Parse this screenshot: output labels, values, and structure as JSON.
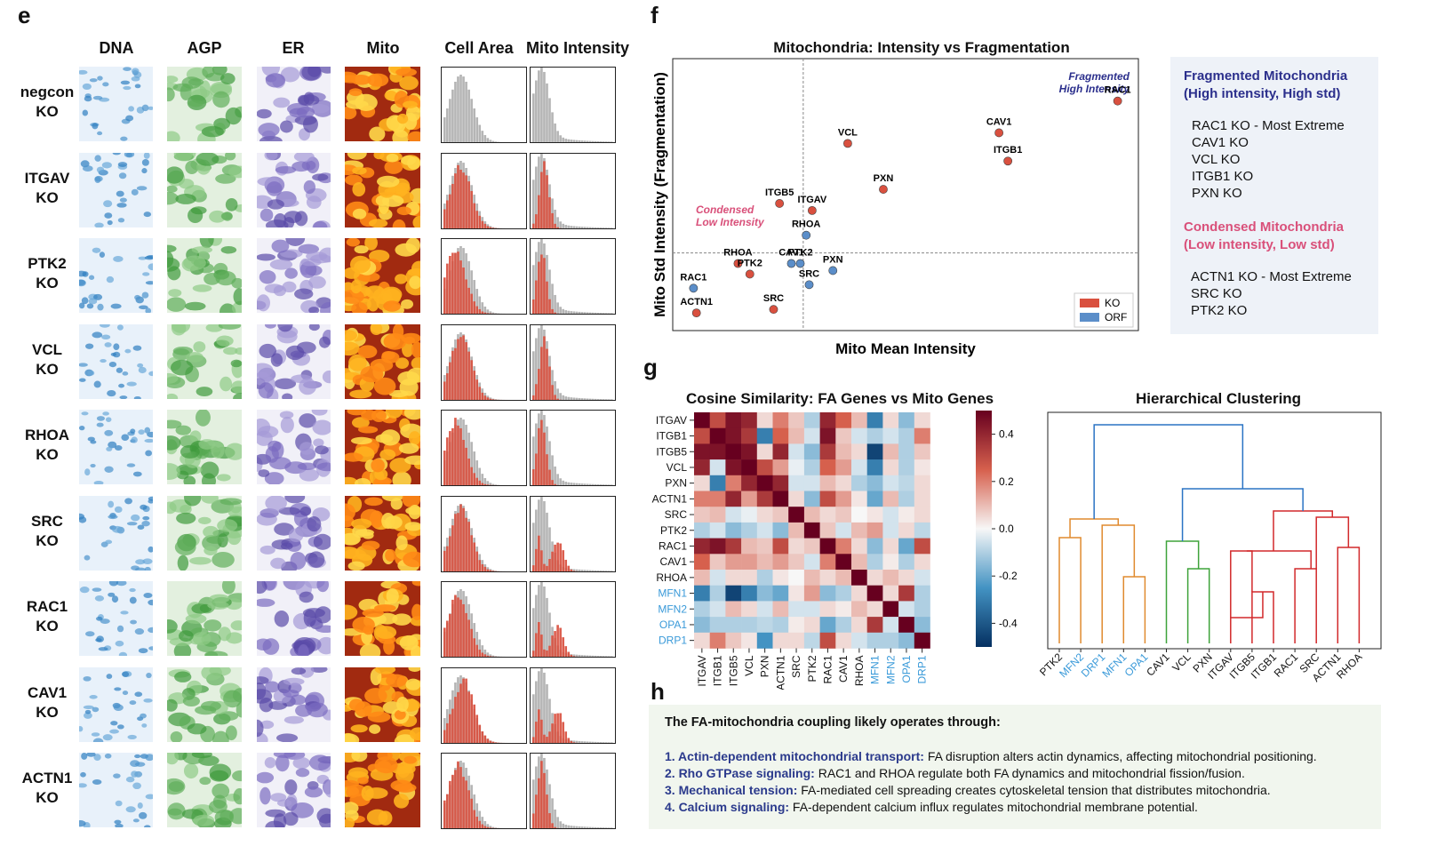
{
  "colors": {
    "ko": "#d9503f",
    "orf": "#5b8ec9",
    "gray_hist": "#b5b5b5",
    "fragmented": "#2b2f8c",
    "condensed": "#d9507a",
    "mito_gene_label": "#3a9ad9",
    "cluster_orange": "#e08a2e",
    "cluster_green": "#3ea33a",
    "cluster_red": "#d2292b",
    "cluster_blue": "#2a73c4"
  },
  "panel_e": {
    "letter": "e",
    "columns": [
      "DNA",
      "AGP",
      "ER",
      "Mito",
      "Cell Area",
      "Mito Intensity"
    ],
    "rows": [
      {
        "line1": "negcon",
        "line2": "KO"
      },
      {
        "line1": "ITGAV",
        "line2": "KO"
      },
      {
        "line1": "PTK2",
        "line2": "KO"
      },
      {
        "line1": "VCL",
        "line2": "KO"
      },
      {
        "line1": "RHOA",
        "line2": "KO"
      },
      {
        "line1": "SRC",
        "line2": "KO"
      },
      {
        "line1": "RAC1",
        "line2": "KO"
      },
      {
        "line1": "CAV1",
        "line2": "KO"
      },
      {
        "line1": "ACTN1",
        "line2": "KO"
      }
    ]
  },
  "panel_f": {
    "letter": "f",
    "title": "Mitochondria: Intensity vs Fragmentation",
    "xlabel": "Mito Mean Intensity",
    "ylabel": "Mito Std Intensity (Fragmentation)",
    "annot_fragmented": [
      "Fragmented",
      "High Intensity"
    ],
    "annot_condensed": [
      "Condensed",
      "Low Intensity"
    ],
    "legend": [
      {
        "label": "KO"
      },
      {
        "label": "ORF"
      }
    ],
    "side_legend": {
      "frag_head1": "Fragmented Mitochondria",
      "frag_head2": "(High intensity, High std)",
      "frag_items": [
        "RAC1 KO - Most Extreme",
        "CAV1 KO",
        "VCL KO",
        "ITGB1 KO",
        "PXN KO"
      ],
      "cond_head1": "Condensed Mitochondria",
      "cond_head2": "(Low intensity, Low std)",
      "cond_items": [
        "ACTN1 KO - Most Extreme",
        "SRC KO",
        "PTK2 KO"
      ]
    }
  },
  "chart_data": [
    {
      "type": "scatter",
      "title": "Mitochondria: Intensity vs Fragmentation",
      "xlabel": "Mito Mean Intensity",
      "ylabel": "Mito Std Intensity (Fragmentation)",
      "reference_lines": {
        "x": 0.0,
        "y": 0.0
      },
      "xlim": [
        -4.4,
        11.3
      ],
      "ylim": [
        -2.2,
        5.5
      ],
      "series": [
        {
          "name": "KO",
          "points": [
            {
              "label": "RAC1",
              "x": 10.6,
              "y": 4.3
            },
            {
              "label": "CAV1",
              "x": 6.6,
              "y": 3.4
            },
            {
              "label": "ITGB1",
              "x": 6.9,
              "y": 2.6
            },
            {
              "label": "VCL",
              "x": 1.5,
              "y": 3.1
            },
            {
              "label": "PXN",
              "x": 2.7,
              "y": 1.8
            },
            {
              "label": "ITGB5",
              "x": -0.8,
              "y": 1.4
            },
            {
              "label": "ITGAV",
              "x": 0.3,
              "y": 1.2
            },
            {
              "label": "RHOA",
              "x": -2.2,
              "y": -0.3
            },
            {
              "label": "PTK2",
              "x": -1.8,
              "y": -0.6
            },
            {
              "label": "SRC",
              "x": -1.0,
              "y": -1.6
            },
            {
              "label": "ACTN1",
              "x": -3.6,
              "y": -1.7
            }
          ]
        },
        {
          "name": "ORF",
          "points": [
            {
              "label": "RHOA",
              "x": 0.1,
              "y": 0.5
            },
            {
              "label": "PTK2",
              "x": -0.1,
              "y": -0.3
            },
            {
              "label": "CAV1",
              "x": -0.4,
              "y": -0.3
            },
            {
              "label": "SRC",
              "x": 0.2,
              "y": -0.9
            },
            {
              "label": "PXN",
              "x": 1.0,
              "y": -0.5
            },
            {
              "label": "RAC1",
              "x": -3.7,
              "y": -1.0
            }
          ]
        }
      ]
    },
    {
      "type": "heatmap",
      "title": "Cosine Similarity: FA Genes vs Mito Genes",
      "rows": [
        "ITGAV",
        "ITGB1",
        "ITGB5",
        "VCL",
        "PXN",
        "ACTN1",
        "SRC",
        "PTK2",
        "RAC1",
        "CAV1",
        "RHOA",
        "MFN1",
        "MFN2",
        "OPA1",
        "DRP1"
      ],
      "cols": [
        "ITGAV",
        "ITGB1",
        "ITGB5",
        "VCL",
        "PXN",
        "ACTN1",
        "SRC",
        "PTK2",
        "RAC1",
        "CAV1",
        "RHOA",
        "MFN1",
        "MFN2",
        "OPA1",
        "DRP1"
      ],
      "colorbar_ticks": [
        "0.4",
        "0.2",
        "0.0",
        "-0.2",
        "-0.4"
      ],
      "vmin": -0.5,
      "vmax": 0.5,
      "values": [
        [
          0.5,
          0.3,
          0.45,
          0.4,
          0.05,
          0.2,
          0.08,
          -0.1,
          0.4,
          0.25,
          0.1,
          -0.3,
          0.05,
          -0.15,
          0.05
        ],
        [
          0.3,
          0.5,
          0.45,
          0.35,
          -0.3,
          0.25,
          0.1,
          -0.05,
          0.45,
          0.08,
          -0.05,
          -0.1,
          -0.05,
          -0.1,
          0.2
        ],
        [
          0.45,
          0.45,
          0.5,
          0.45,
          0.05,
          0.4,
          -0.05,
          -0.15,
          0.35,
          0.1,
          0.05,
          -0.45,
          0.1,
          -0.1,
          0.08
        ],
        [
          0.4,
          -0.05,
          0.45,
          0.5,
          0.3,
          0.15,
          -0.02,
          -0.1,
          0.25,
          0.15,
          -0.05,
          -0.3,
          0.05,
          -0.1,
          0.03
        ],
        [
          0.05,
          -0.3,
          0.2,
          0.4,
          0.5,
          0.4,
          -0.05,
          -0.05,
          0.1,
          0.05,
          -0.1,
          -0.15,
          -0.05,
          -0.08,
          0.05
        ],
        [
          0.2,
          0.2,
          0.4,
          0.15,
          0.35,
          0.5,
          0.05,
          -0.15,
          0.3,
          0.15,
          0.03,
          -0.2,
          0.1,
          -0.1,
          0.05
        ],
        [
          0.08,
          0.1,
          -0.05,
          -0.02,
          0.05,
          0.08,
          0.5,
          0.1,
          0.05,
          0.08,
          0.0,
          0.03,
          -0.05,
          0.02,
          0.05
        ],
        [
          -0.1,
          -0.05,
          -0.15,
          -0.1,
          -0.05,
          -0.15,
          0.1,
          0.5,
          0.08,
          -0.05,
          0.1,
          0.15,
          -0.05,
          0.05,
          -0.08
        ],
        [
          0.4,
          0.45,
          0.35,
          0.1,
          0.08,
          0.3,
          0.05,
          0.08,
          0.5,
          0.2,
          0.05,
          -0.15,
          0.05,
          -0.2,
          0.3
        ],
        [
          0.25,
          0.08,
          0.15,
          0.15,
          0.1,
          0.15,
          0.08,
          -0.05,
          0.2,
          0.5,
          0.1,
          -0.1,
          0.02,
          -0.1,
          0.05
        ],
        [
          0.1,
          -0.05,
          0.05,
          0.05,
          -0.1,
          0.03,
          0.0,
          0.1,
          0.05,
          0.1,
          0.5,
          0.05,
          0.1,
          0.05,
          -0.05
        ],
        [
          -0.3,
          -0.1,
          -0.45,
          -0.3,
          -0.15,
          -0.2,
          0.03,
          0.15,
          -0.15,
          -0.1,
          0.05,
          0.5,
          0.05,
          0.35,
          -0.1
        ],
        [
          -0.1,
          -0.05,
          0.1,
          0.05,
          -0.05,
          0.1,
          -0.05,
          -0.05,
          0.05,
          0.02,
          0.1,
          0.05,
          0.5,
          -0.05,
          -0.1
        ],
        [
          -0.15,
          -0.1,
          -0.1,
          -0.1,
          -0.08,
          -0.1,
          0.02,
          0.05,
          -0.2,
          -0.1,
          0.05,
          0.35,
          -0.05,
          0.5,
          -0.15
        ],
        [
          0.05,
          0.2,
          0.08,
          0.03,
          -0.25,
          0.05,
          0.05,
          -0.08,
          0.3,
          0.05,
          -0.05,
          -0.1,
          -0.1,
          -0.15,
          0.5
        ]
      ]
    }
  ],
  "panel_g": {
    "letter": "g",
    "heatmap_title": "Cosine Similarity: FA Genes vs Mito Genes",
    "mito_genes": [
      "MFN1",
      "MFN2",
      "OPA1",
      "DRP1"
    ],
    "dendro_title": "Hierarchical Clustering",
    "dendro_leaves": [
      "PTK2",
      "MFN2",
      "DRP1",
      "MFN1",
      "OPA1",
      "CAV1",
      "VCL",
      "PXN",
      "ITGAV",
      "ITGB5",
      "ITGB1",
      "RAC1",
      "SRC",
      "ACTN1",
      "RHOA"
    ],
    "dendro_leaf_colors": [
      "#111",
      "mito",
      "mito",
      "mito",
      "mito",
      "#111",
      "#111",
      "#111",
      "#111",
      "#111",
      "#111",
      "#111",
      "#111",
      "#111",
      "#111"
    ]
  },
  "panel_h": {
    "letter": "h",
    "intro": "The FA-mitochondria coupling likely operates through:",
    "items": [
      {
        "key": "1. Actin-dependent mitochondrial transport:",
        "text": " FA disruption alters actin dynamics, affecting mitochondrial positioning."
      },
      {
        "key": "2. Rho GTPase signaling:",
        "text": " RAC1 and RHOA regulate both FA dynamics and mitochondrial fission/fusion."
      },
      {
        "key": "3. Mechanical tension:",
        "text": " FA-mediated cell spreading creates cytoskeletal tension that distributes mitochondria."
      },
      {
        "key": "4. Calcium signaling:",
        "text": " FA-dependent calcium influx regulates mitochondrial membrane potential."
      }
    ]
  }
}
